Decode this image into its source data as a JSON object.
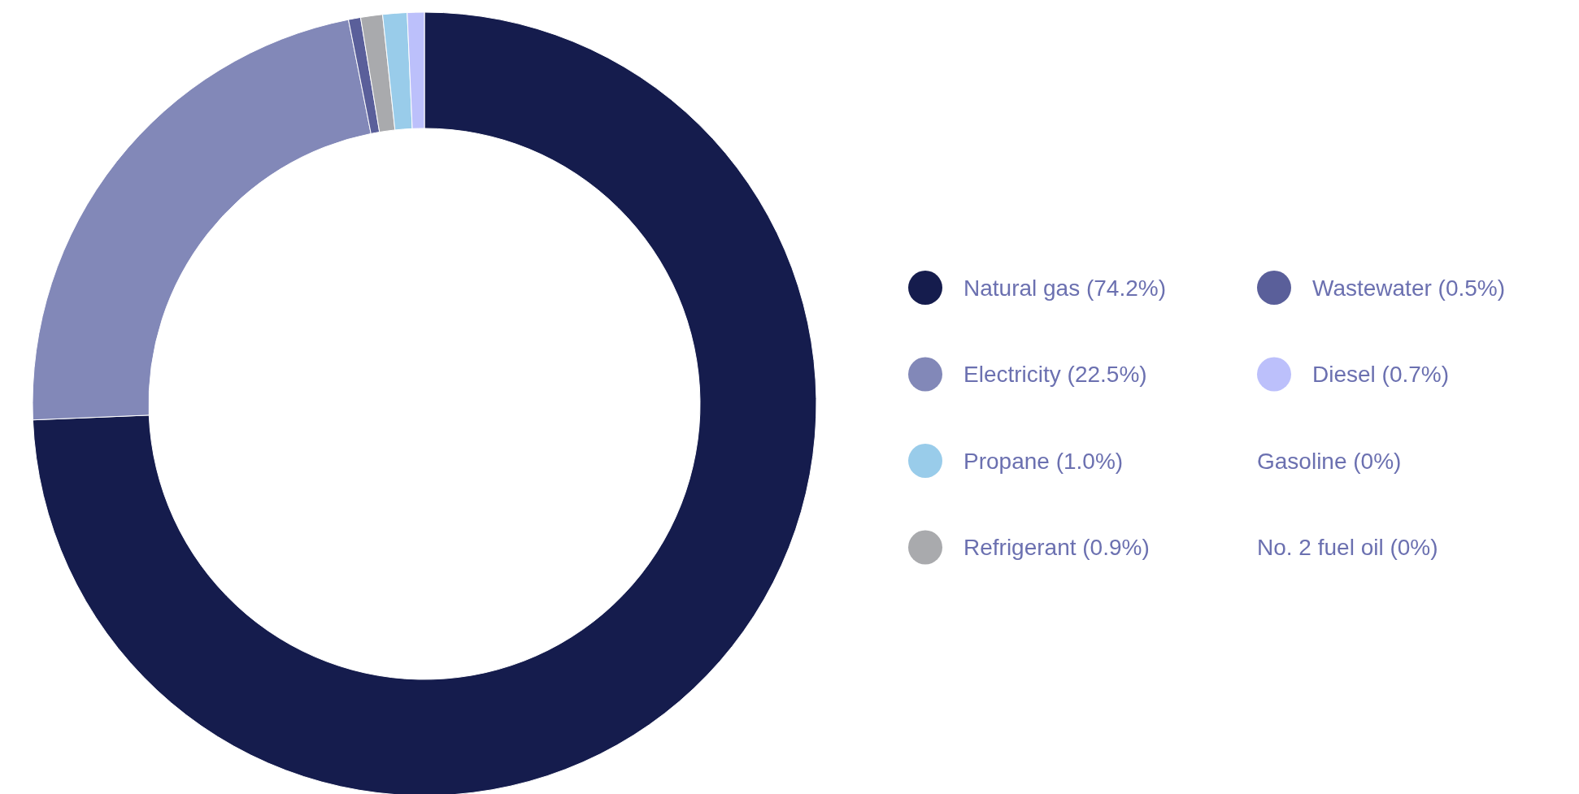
{
  "chart_data": {
    "type": "donut",
    "categories": [
      "Natural gas (74.2%)",
      "Electricity (22.5%)",
      "Wastewater (0.5%)",
      "Refrigerant (0.9%)",
      "Propane (1.0%)",
      "Diesel (0.7%)",
      "Gasoline (0%)",
      "No. 2 fuel oil (0%)"
    ],
    "values": [
      74.2,
      22.5,
      0.5,
      0.9,
      1.0,
      0.7,
      0,
      0
    ],
    "colors": [
      "#151c4d",
      "#8288b8",
      "#5a5f9a",
      "#a9aaad",
      "#99ccea",
      "#bcc0fb",
      null,
      null
    ],
    "legend": "right"
  }
}
